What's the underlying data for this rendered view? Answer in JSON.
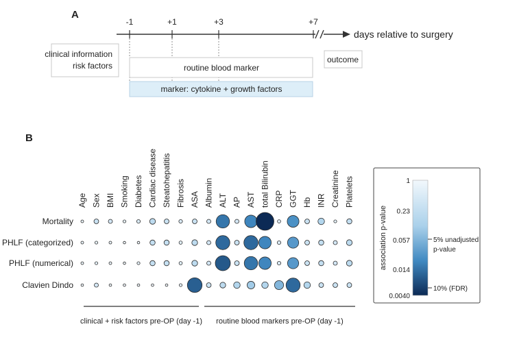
{
  "panel_a": {
    "label": "A",
    "axis_label": "days relative to surgery",
    "ticks": [
      {
        "label": "-1",
        "day": -1
      },
      {
        "label": "+1",
        "day": 1
      },
      {
        "label": "+3",
        "day": 3
      },
      {
        "label": "+7",
        "day": 7
      }
    ],
    "clinical_box": [
      "clinical information",
      "risk factors"
    ],
    "routine_box": "routine blood marker",
    "marker_box": "marker: cytokine + growth factors",
    "outcome_box": "outcome"
  },
  "panel_b": {
    "label": "B",
    "variables": [
      "Age",
      "Sex",
      "BMI",
      "Smoking",
      "Diabetes",
      "Cardiac disease",
      "Steatohepatitis",
      "Fibrosis",
      "ASA",
      "Albumin",
      "ALT",
      "AP",
      "AST",
      "total Bilirubin",
      "CRP",
      "GGT",
      "Hb",
      "INR",
      "Creatinine",
      "Platelets"
    ],
    "outcomes": [
      "Mortality",
      "PHLF (categorized)",
      "PHLF (numerical)",
      "Clavien Dindo"
    ],
    "group_labels": [
      "clinical + risk factors  pre-OP (day -1)",
      "routine blood markers pre-OP (day -1)"
    ],
    "legend": {
      "title": "association p-value",
      "ticks": [
        "1",
        "0.23",
        "0.057",
        "0.014",
        "0.0040"
      ],
      "annotations": [
        "5% unadjusted",
        "p-value",
        "10% (FDR)"
      ],
      "color_light": "#f2f8fc",
      "color_dark": "#0c2a55"
    }
  },
  "chart_data": {
    "type": "dot-matrix",
    "title": "",
    "xlabel": "",
    "ylabel": "",
    "value_name": "association p-value",
    "scale": "log",
    "vrange": [
      0.004,
      1
    ],
    "columns": [
      "Age",
      "Sex",
      "BMI",
      "Smoking",
      "Diabetes",
      "Cardiac disease",
      "Steatohepatitis",
      "Fibrosis",
      "ASA",
      "Albumin",
      "ALT",
      "AP",
      "AST",
      "total Bilirubin",
      "CRP",
      "GGT",
      "Hb",
      "INR",
      "Creatinine",
      "Platelets"
    ],
    "rows": [
      "Mortality",
      "PHLF (categorized)",
      "PHLF (numerical)",
      "Clavien Dindo"
    ],
    "p_values": [
      [
        0.8,
        0.3,
        0.4,
        0.7,
        0.5,
        0.2,
        0.3,
        0.5,
        0.3,
        0.4,
        0.015,
        0.4,
        0.02,
        0.004,
        0.6,
        0.025,
        0.3,
        0.15,
        0.7,
        0.25
      ],
      [
        0.8,
        0.7,
        0.8,
        0.95,
        0.95,
        0.25,
        0.25,
        0.6,
        0.2,
        0.4,
        0.012,
        0.3,
        0.012,
        0.02,
        0.5,
        0.03,
        0.3,
        0.25,
        0.4,
        0.2
      ],
      [
        0.8,
        0.7,
        0.8,
        0.95,
        0.7,
        0.25,
        0.25,
        0.6,
        0.2,
        0.4,
        0.009,
        0.3,
        0.015,
        0.02,
        0.5,
        0.03,
        0.3,
        0.25,
        0.4,
        0.2
      ],
      [
        0.9,
        0.4,
        0.9,
        0.9,
        0.9,
        0.9,
        0.9,
        0.7,
        0.01,
        0.3,
        0.2,
        0.15,
        0.1,
        0.15,
        0.06,
        0.012,
        0.15,
        0.3,
        0.3,
        0.3
      ]
    ]
  }
}
